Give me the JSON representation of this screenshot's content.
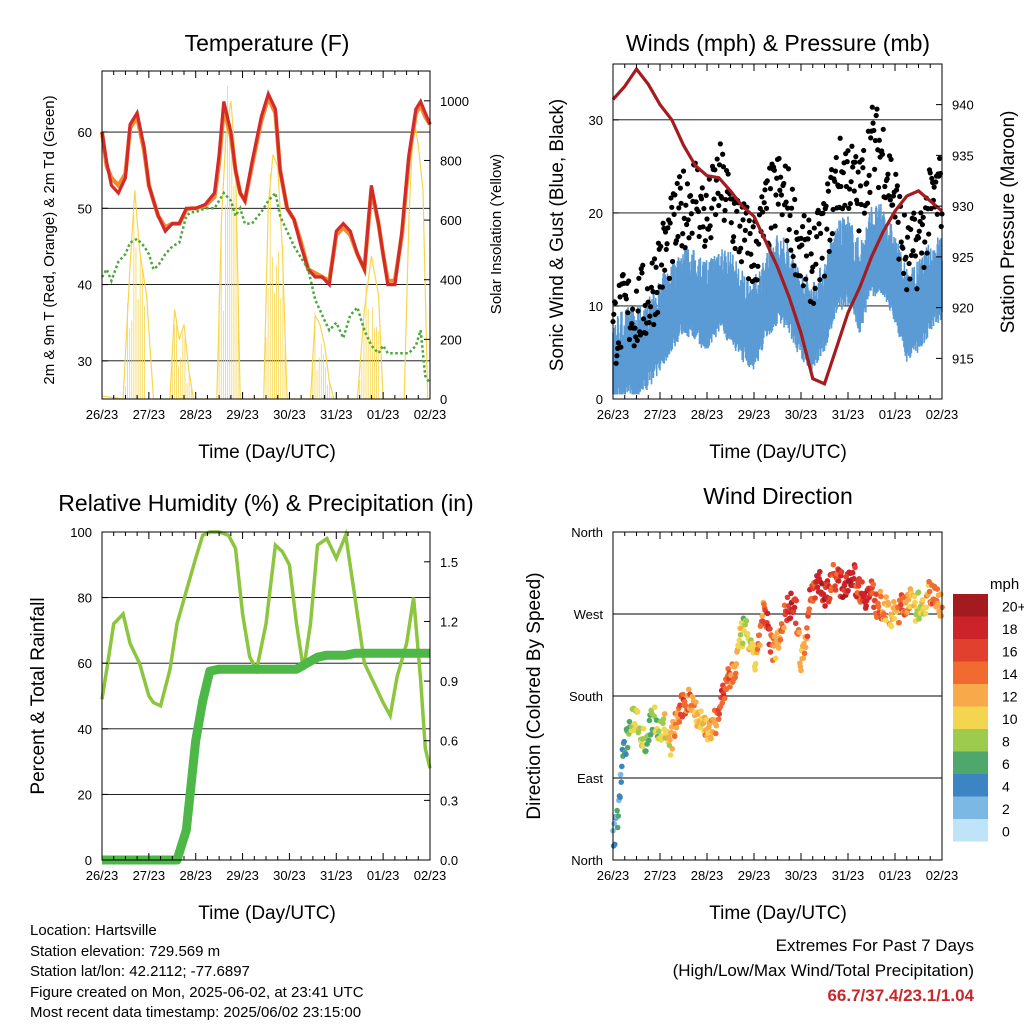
{
  "panels": {
    "temperature": {
      "title": "Temperature (F)",
      "ylabel_left": "2m & 9m T (Red, Orange) & 2m Td (Green)",
      "ylabel_right": "Solar Insolation (Yellow)",
      "xlabel": "Time (Day/UTC)"
    },
    "winds": {
      "title": "Winds (mph) & Pressure (mb)",
      "ylabel_left": "Sonic Wind & Gust (Blue, Black)",
      "ylabel_right": "Station Pressure (Maroon)",
      "xlabel": "Time (Day/UTC)"
    },
    "humidity": {
      "title": "Relative Humidity (%) & Precipitation (in)",
      "ylabel_left": "Percent & Total Rainfall",
      "xlabel": "Time (Day/UTC)"
    },
    "direction": {
      "title": "Wind Direction",
      "ylabel_left": "Direction (Colored By Speed)",
      "xlabel": "Time (Day/UTC)"
    }
  },
  "legend": {
    "title": "mph",
    "labels": [
      "20+",
      "18",
      "16",
      "14",
      "12",
      "10",
      "8",
      "6",
      "4",
      "2",
      "0"
    ],
    "colors": [
      "#a31a1f",
      "#cc2229",
      "#e2402f",
      "#f16a30",
      "#f8a94a",
      "#f4d54f",
      "#9dcb4e",
      "#4ea86c",
      "#3d85c2",
      "#7bb8e3",
      "#bfe4f8"
    ]
  },
  "info": {
    "location": "Location: Hartsville",
    "elevation": "Station elevation: 729.569 m",
    "latlon": "Station lat/lon: 42.2112; -77.6897",
    "created": "Figure created on Mon, 2025-06-02, at 23:41 UTC",
    "recent": "Most recent data timestamp: 2025/06/02 23:15:00"
  },
  "extremes": {
    "line1": "Extremes For Past 7 Days",
    "line2": "(High/Low/Max Wind/Total Precipitation)",
    "values": "66.7/37.4/23.1/1.04"
  },
  "chart_data": [
    {
      "type": "line",
      "title": "Temperature (F)",
      "xlabel": "Time (Day/UTC)",
      "ylabel": "2m & 9m T (Red, Orange) & 2m Td (Green)",
      "y2label": "Solar Insolation (Yellow)",
      "x_ticks": [
        "26/23",
        "27/23",
        "28/23",
        "29/23",
        "30/23",
        "31/23",
        "01/23",
        "02/23"
      ],
      "xlim": [
        0,
        7
      ],
      "ylim": [
        25,
        68
      ],
      "y_ticks": [
        30,
        40,
        50,
        60
      ],
      "y2lim": [
        0,
        1100
      ],
      "y2_ticks": [
        0,
        200,
        400,
        600,
        800,
        1000
      ],
      "x": [
        0,
        0.1,
        0.2,
        0.35,
        0.5,
        0.6,
        0.75,
        0.9,
        1.0,
        1.1,
        1.2,
        1.35,
        1.5,
        1.65,
        1.8,
        1.9,
        2.0,
        2.2,
        2.4,
        2.5,
        2.6,
        2.75,
        2.85,
        2.95,
        3.05,
        3.2,
        3.4,
        3.55,
        3.7,
        3.8,
        3.95,
        4.1,
        4.25,
        4.4,
        4.55,
        4.7,
        4.85,
        5.0,
        5.15,
        5.3,
        5.45,
        5.6,
        5.75,
        5.9,
        6.0,
        6.1,
        6.25,
        6.4,
        6.55,
        6.7,
        6.8,
        6.9,
        7.0
      ],
      "series": [
        {
          "name": "2m T",
          "color": "#d42a2a",
          "values": [
            60,
            56,
            53,
            52,
            54,
            61,
            62.5,
            58,
            53,
            51,
            49,
            47,
            48,
            48,
            50,
            50,
            50,
            50.5,
            52,
            57,
            64,
            60,
            55,
            52,
            51,
            56,
            62,
            65,
            63,
            55,
            50,
            48.5,
            45,
            42,
            41,
            41,
            40,
            47,
            48,
            47,
            44,
            42,
            53,
            48,
            44,
            40,
            40,
            47,
            57,
            63,
            64,
            62.5,
            61
          ]
        },
        {
          "name": "9m T",
          "color": "#f08a2f",
          "values": [
            60,
            55.5,
            54,
            53,
            54.5,
            60.5,
            62,
            57.5,
            53,
            51,
            49,
            47.5,
            48,
            48,
            49.8,
            50,
            50,
            50.3,
            51.5,
            56,
            63,
            59.5,
            55,
            52,
            51,
            55.5,
            61.5,
            64.5,
            62.5,
            55,
            50,
            48.5,
            45.5,
            42,
            41.5,
            41,
            40.5,
            46.5,
            47.5,
            46.5,
            44,
            42,
            52.5,
            48,
            44,
            40.5,
            40.5,
            46.5,
            56.5,
            62.5,
            63.5,
            62,
            61
          ]
        },
        {
          "name": "2m Td",
          "color": "#4aa83a",
          "values": [
            41,
            42,
            40.5,
            43,
            44,
            45.5,
            46,
            45,
            44,
            42,
            42.5,
            44,
            45,
            45.5,
            49,
            49.5,
            49.5,
            50,
            50,
            51,
            52,
            51,
            49,
            50,
            48,
            48,
            49.5,
            51,
            52,
            49,
            47,
            45,
            43.5,
            42,
            38,
            36,
            34,
            35,
            33,
            36,
            37,
            34,
            32,
            31,
            32,
            31,
            31,
            31,
            31,
            32,
            34,
            28,
            27
          ]
        }
      ],
      "solar_insolation": {
        "name": "Solar Insolation",
        "color": "#f7d64d",
        "x": [
          0,
          0.45,
          0.6,
          0.7,
          0.8,
          0.95,
          1.1,
          1.45,
          1.55,
          1.65,
          1.75,
          1.85,
          1.95,
          2.45,
          2.55,
          2.65,
          2.75,
          2.85,
          2.95,
          3.45,
          3.55,
          3.65,
          3.75,
          3.85,
          3.95,
          4.45,
          4.55,
          4.65,
          4.75,
          4.85,
          4.95,
          5.45,
          5.6,
          5.75,
          5.9,
          6.0,
          6.45,
          6.55,
          6.65,
          6.75,
          6.85,
          6.95
        ],
        "values": [
          10,
          0,
          450,
          700,
          500,
          350,
          0,
          0,
          300,
          200,
          250,
          100,
          0,
          0,
          600,
          900,
          1000,
          800,
          0,
          0,
          650,
          820,
          780,
          500,
          0,
          0,
          280,
          250,
          180,
          60,
          0,
          0,
          300,
          480,
          350,
          0,
          0,
          600,
          950,
          850,
          700,
          0
        ]
      }
    },
    {
      "type": "scatter",
      "title": "Winds (mph) & Pressure (mb)",
      "xlabel": "Time (Day/UTC)",
      "ylabel": "Sonic Wind & Gust (Blue, Black)",
      "y2label": "Station Pressure (Maroon)",
      "x_ticks": [
        "26/23",
        "27/23",
        "28/23",
        "29/23",
        "30/23",
        "31/23",
        "01/23",
        "02/23"
      ],
      "xlim": [
        0,
        7
      ],
      "ylim": [
        0,
        36
      ],
      "y_ticks": [
        0,
        10,
        20,
        30
      ],
      "y2lim": [
        911,
        944
      ],
      "y2_ticks": [
        915,
        920,
        925,
        930,
        935,
        940
      ],
      "x": [
        0,
        0.25,
        0.5,
        0.75,
        1.0,
        1.25,
        1.5,
        1.75,
        2.0,
        2.25,
        2.5,
        2.75,
        3.0,
        3.25,
        3.5,
        3.75,
        4.0,
        4.25,
        4.5,
        4.75,
        5.0,
        5.25,
        5.5,
        5.75,
        6.0,
        6.25,
        6.5,
        6.75,
        7.0
      ],
      "series": [
        {
          "name": "Sonic Wind",
          "color": "#5b9bd5",
          "values": [
            4,
            5,
            5,
            6,
            8,
            10,
            12,
            11,
            10,
            12,
            11,
            9,
            8,
            11,
            13,
            12,
            9,
            8,
            10,
            14,
            15,
            12,
            16,
            16,
            13,
            9,
            10,
            12,
            13
          ]
        },
        {
          "name": "Gust",
          "color": "#000000",
          "values": [
            7,
            9,
            9,
            10,
            14,
            17,
            20,
            22,
            18,
            23,
            20,
            17,
            15,
            19,
            22,
            20,
            15,
            14,
            17,
            23,
            24,
            21,
            27,
            26,
            21,
            14,
            16,
            20,
            22
          ]
        },
        {
          "name": "Station Pressure",
          "color": "#a51c20",
          "values": [
            940.5,
            941.8,
            943.5,
            942.0,
            940.0,
            938.5,
            936.0,
            934.0,
            933.0,
            932.8,
            931.5,
            930.0,
            929.0,
            926.5,
            924.0,
            921.0,
            917.5,
            913.0,
            912.5,
            916.0,
            919.5,
            922.0,
            925.0,
            927.5,
            929.5,
            931.0,
            931.5,
            930.5,
            929.5
          ]
        }
      ]
    },
    {
      "type": "line",
      "title": "Relative Humidity (%) & Precipitation (in)",
      "xlabel": "Time (Day/UTC)",
      "ylabel": "Percent & Total Rainfall",
      "x_ticks": [
        "26/23",
        "27/23",
        "28/23",
        "29/23",
        "30/23",
        "31/23",
        "01/23",
        "02/23"
      ],
      "xlim": [
        0,
        7
      ],
      "ylim": [
        0,
        100
      ],
      "y_ticks": [
        0,
        20,
        40,
        60,
        80,
        100
      ],
      "y2lim": [
        0,
        1.65
      ],
      "y2_ticks": [
        0.0,
        0.3,
        0.6,
        0.9,
        1.2,
        1.5
      ],
      "x": [
        0,
        0.1,
        0.25,
        0.45,
        0.6,
        0.8,
        1.0,
        1.1,
        1.25,
        1.45,
        1.6,
        1.8,
        2.0,
        2.15,
        2.3,
        2.5,
        2.7,
        2.85,
        3.0,
        3.15,
        3.3,
        3.5,
        3.7,
        3.85,
        4.0,
        4.15,
        4.3,
        4.45,
        4.6,
        4.8,
        5.0,
        5.2,
        5.4,
        5.6,
        5.8,
        6.0,
        6.15,
        6.3,
        6.5,
        6.65,
        6.8,
        6.9,
        7.0
      ],
      "series": [
        {
          "name": "Relative Humidity",
          "color": "#8cc63f",
          "values": [
            49,
            58,
            72,
            75,
            66,
            60,
            50,
            48,
            47,
            58,
            72,
            82,
            92,
            99,
            100,
            100,
            99,
            95,
            75,
            62,
            58,
            72,
            96,
            94,
            90,
            72,
            58,
            72,
            96,
            98,
            92,
            99,
            80,
            60,
            54,
            48,
            44,
            56,
            66,
            80,
            55,
            34,
            28
          ]
        },
        {
          "name": "Precipitation",
          "color": "#4db848",
          "values": [
            0,
            0,
            0,
            0,
            0,
            0,
            0,
            0,
            0,
            0,
            0,
            0.15,
            0.6,
            0.8,
            0.95,
            0.96,
            0.96,
            0.96,
            0.96,
            0.96,
            0.96,
            0.96,
            0.96,
            0.96,
            0.96,
            0.96,
            0.98,
            1.0,
            1.02,
            1.03,
            1.03,
            1.03,
            1.04,
            1.04,
            1.04,
            1.04,
            1.04,
            1.04,
            1.04,
            1.04,
            1.04,
            1.04,
            1.04
          ]
        }
      ]
    },
    {
      "type": "scatter",
      "title": "Wind Direction",
      "xlabel": "Time (Day/UTC)",
      "ylabel": "Direction (Colored By Speed)",
      "x_ticks": [
        "26/23",
        "27/23",
        "28/23",
        "29/23",
        "30/23",
        "31/23",
        "01/23",
        "02/23"
      ],
      "xlim": [
        0,
        7
      ],
      "ylim": [
        0,
        360
      ],
      "y_ticks": [
        "North",
        "East",
        "South",
        "West",
        "North"
      ],
      "color_by": "speed (mph)",
      "x": [
        0.0,
        0.1,
        0.2,
        0.3,
        0.4,
        0.5,
        0.6,
        0.7,
        0.8,
        0.9,
        1.0,
        1.1,
        1.2,
        1.3,
        1.4,
        1.5,
        1.6,
        1.7,
        1.8,
        1.9,
        2.0,
        2.1,
        2.2,
        2.3,
        2.4,
        2.5,
        2.6,
        2.7,
        2.8,
        2.9,
        3.0,
        3.1,
        3.2,
        3.3,
        3.4,
        3.5,
        3.6,
        3.7,
        3.8,
        3.9,
        4.0,
        4.1,
        4.2,
        4.3,
        4.4,
        4.5,
        4.6,
        4.7,
        4.8,
        4.9,
        5.0,
        5.1,
        5.2,
        5.3,
        5.4,
        5.5,
        5.6,
        5.7,
        5.8,
        5.9,
        6.0,
        6.1,
        6.2,
        6.3,
        6.4,
        6.5,
        6.6,
        6.7,
        6.8,
        6.9,
        7.0
      ],
      "values": [
        20,
        50,
        110,
        135,
        150,
        160,
        140,
        130,
        150,
        155,
        140,
        150,
        120,
        145,
        160,
        170,
        175,
        175,
        160,
        150,
        145,
        140,
        155,
        175,
        190,
        200,
        210,
        240,
        255,
        240,
        215,
        240,
        270,
        255,
        230,
        240,
        260,
        275,
        280,
        270,
        215,
        240,
        290,
        300,
        310,
        285,
        300,
        315,
        305,
        300,
        310,
        315,
        300,
        295,
        290,
        295,
        280,
        280,
        275,
        265,
        270,
        275,
        280,
        290,
        275,
        280,
        270,
        300,
        290,
        285,
        280
      ],
      "speeds": [
        4,
        4,
        5,
        6,
        8,
        8,
        10,
        8,
        6,
        8,
        9,
        10,
        10,
        12,
        14,
        16,
        14,
        12,
        12,
        10,
        12,
        12,
        14,
        16,
        16,
        14,
        12,
        10,
        8,
        10,
        10,
        12,
        14,
        16,
        14,
        12,
        14,
        16,
        18,
        16,
        12,
        14,
        16,
        16,
        18,
        18,
        16,
        14,
        16,
        18,
        18,
        18,
        16,
        16,
        18,
        16,
        14,
        14,
        12,
        12,
        12,
        14,
        14,
        12,
        10,
        8,
        10,
        12,
        14,
        12,
        12
      ]
    }
  ]
}
